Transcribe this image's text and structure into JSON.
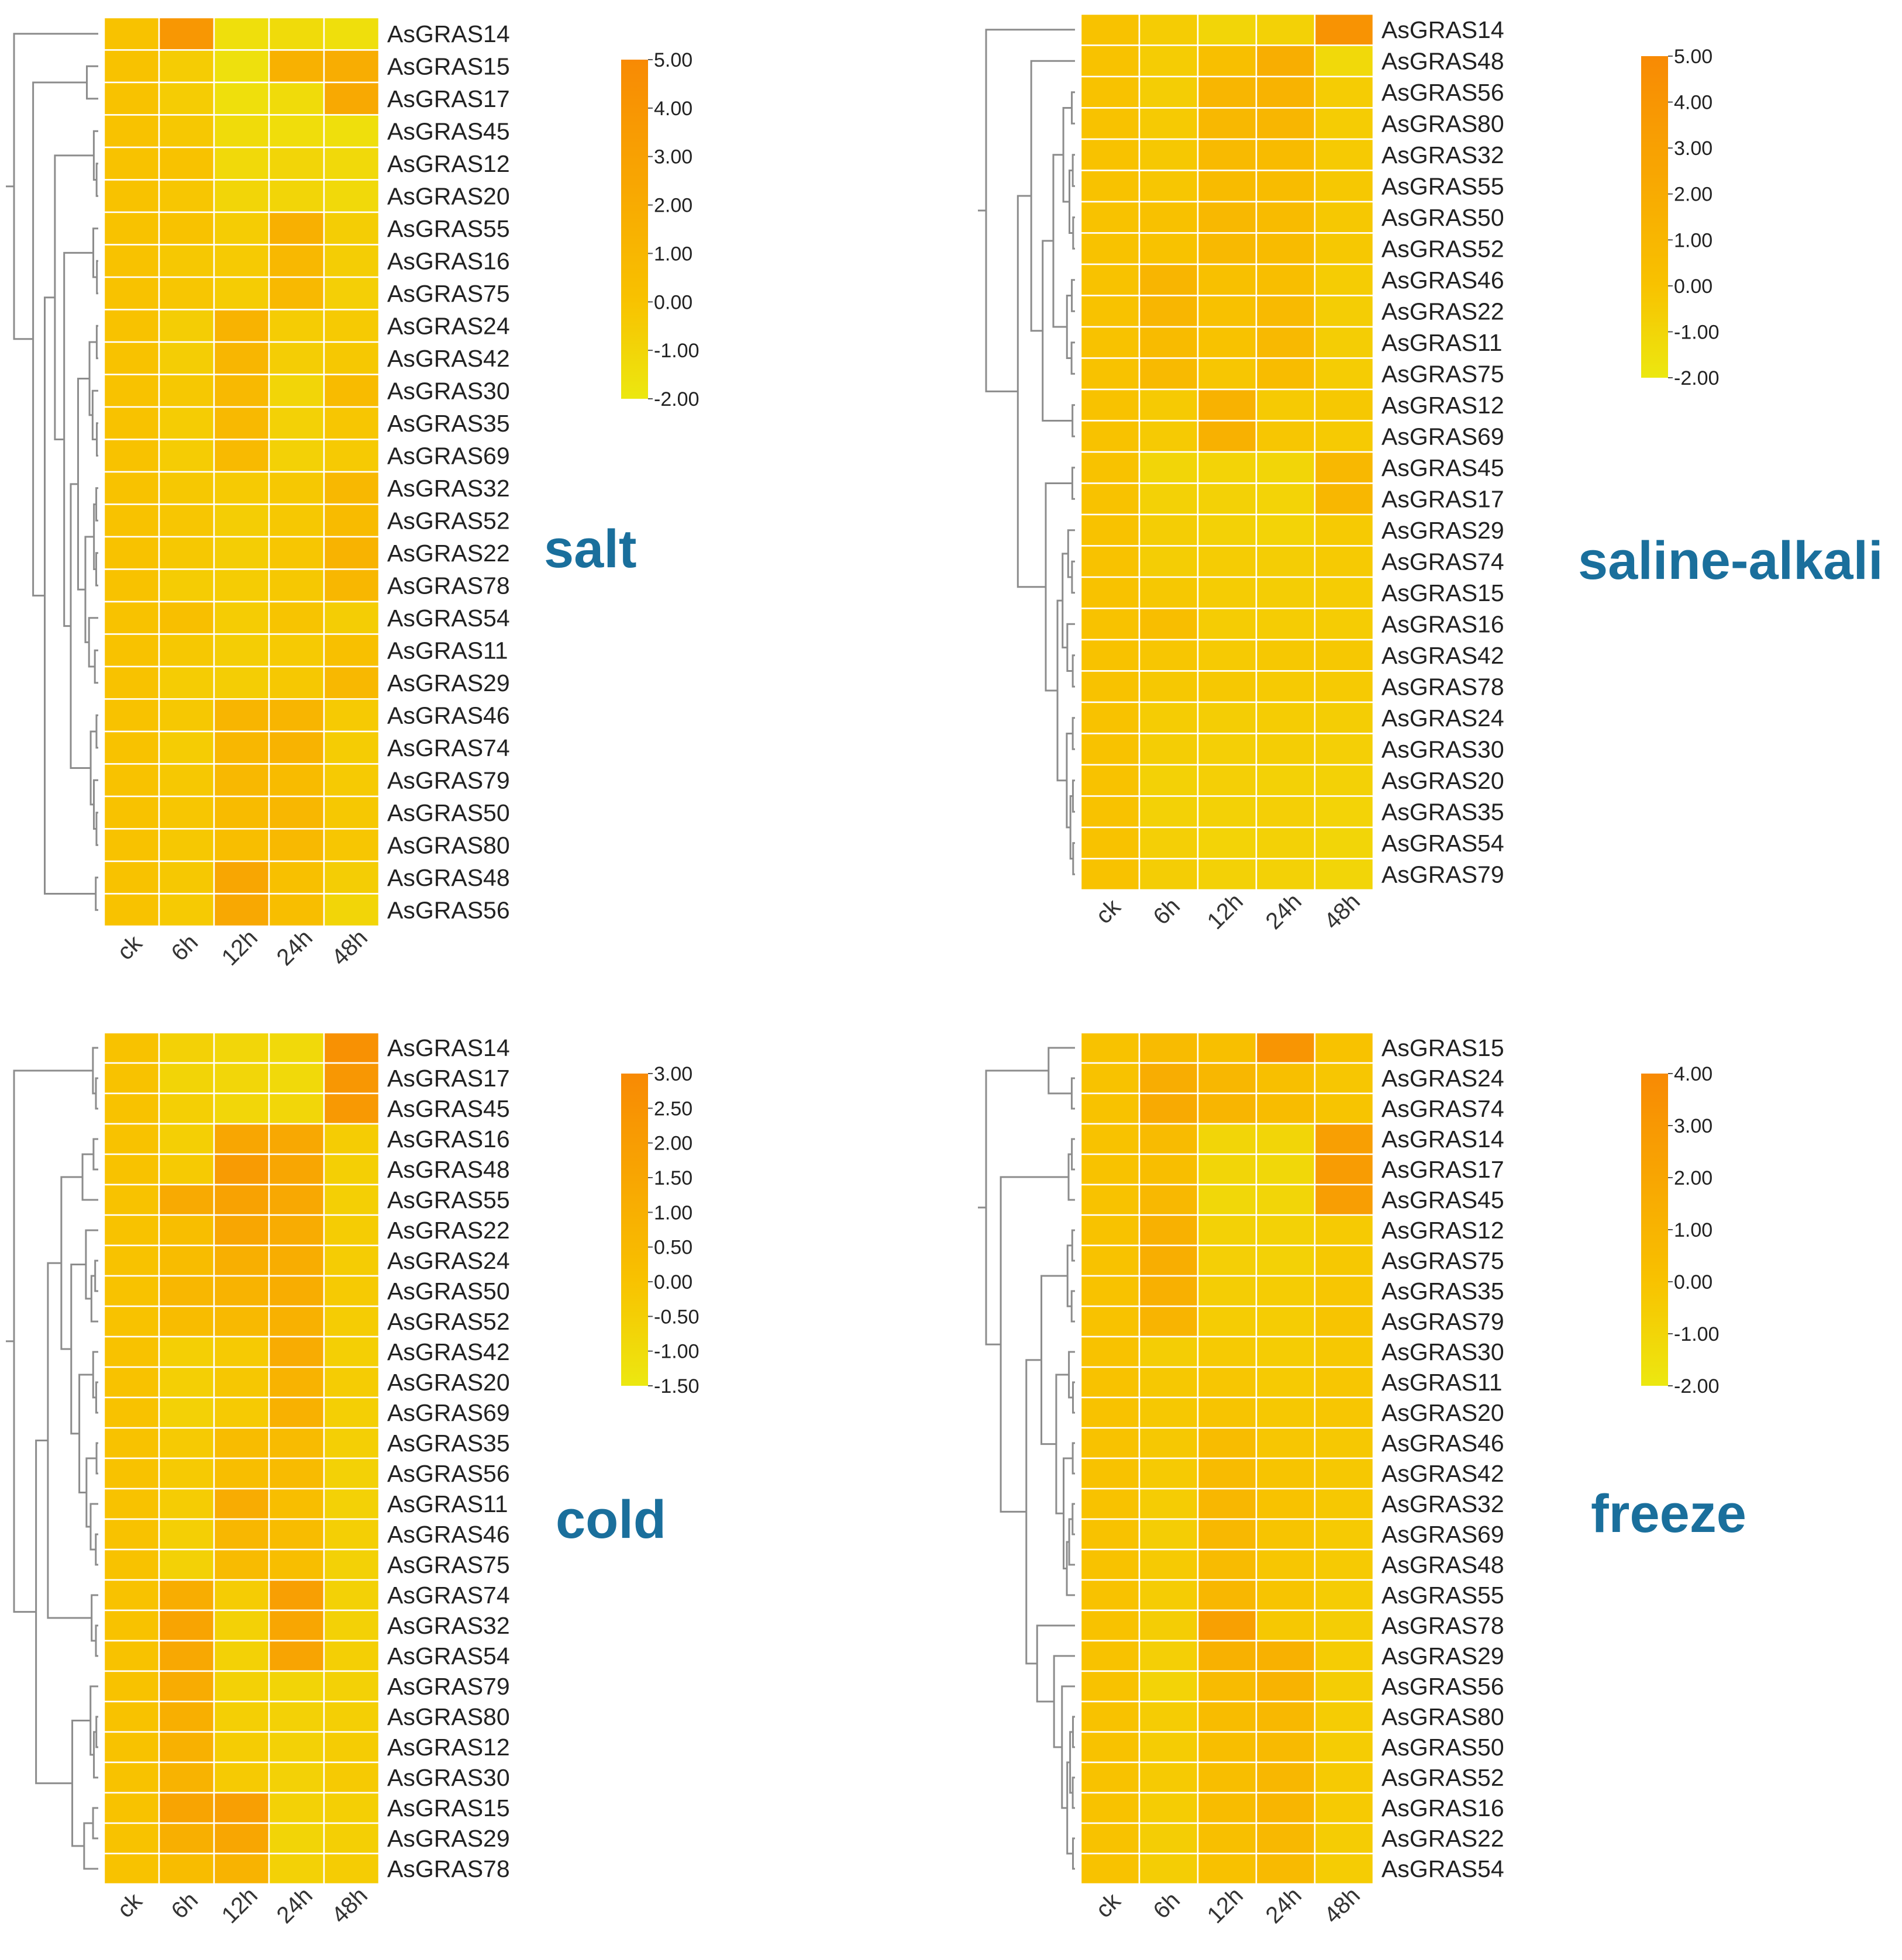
{
  "colors": {
    "low": "#ece810",
    "mid": "#f8c200",
    "high": "#f88a04",
    "title": "#1a6f9c",
    "cell_border": "#ffffff"
  },
  "chart_data": [
    {
      "type": "heatmap",
      "title": "salt",
      "columns": [
        "ck",
        "6h",
        "12h",
        "24h",
        "48h"
      ],
      "rows": [
        "AsGRAS14",
        "AsGRAS15",
        "AsGRAS17",
        "AsGRAS45",
        "AsGRAS12",
        "AsGRAS20",
        "AsGRAS55",
        "AsGRAS16",
        "AsGRAS75",
        "AsGRAS24",
        "AsGRAS42",
        "AsGRAS30",
        "AsGRAS35",
        "AsGRAS69",
        "AsGRAS32",
        "AsGRAS52",
        "AsGRAS22",
        "AsGRAS78",
        "AsGRAS54",
        "AsGRAS11",
        "AsGRAS29",
        "AsGRAS46",
        "AsGRAS74",
        "AsGRAS79",
        "AsGRAS50",
        "AsGRAS80",
        "AsGRAS48",
        "AsGRAS56"
      ],
      "values": [
        [
          0.0,
          3.8,
          -1.5,
          -1.3,
          -1.5
        ],
        [
          0.0,
          -0.5,
          -1.6,
          1.5,
          1.9
        ],
        [
          0.0,
          -0.5,
          -1.5,
          -1.3,
          2.2
        ],
        [
          0.0,
          -0.3,
          -1.3,
          -1.4,
          -1.5
        ],
        [
          0.0,
          0.0,
          -1.2,
          -1.0,
          -1.2
        ],
        [
          0.0,
          -0.2,
          -1.0,
          -1.0,
          -1.2
        ],
        [
          0.0,
          0.0,
          -0.5,
          1.6,
          -0.6
        ],
        [
          0.0,
          -0.3,
          -0.4,
          0.9,
          -0.6
        ],
        [
          0.0,
          -0.2,
          -0.5,
          0.8,
          -0.7
        ],
        [
          0.0,
          -0.6,
          1.3,
          -0.5,
          -0.4
        ],
        [
          0.0,
          -0.6,
          1.1,
          -0.6,
          -0.3
        ],
        [
          0.0,
          -0.3,
          0.8,
          -1.0,
          0.6
        ],
        [
          0.0,
          -0.5,
          0.8,
          -0.8,
          -0.2
        ],
        [
          0.0,
          -0.5,
          0.7,
          -0.8,
          -0.4
        ],
        [
          0.0,
          -0.3,
          -0.4,
          -0.3,
          0.9
        ],
        [
          0.0,
          -0.2,
          -0.6,
          -0.3,
          0.6
        ],
        [
          0.0,
          -0.3,
          -0.6,
          -0.2,
          1.3
        ],
        [
          0.0,
          -0.5,
          -0.5,
          -0.3,
          1.0
        ],
        [
          0.0,
          0.3,
          -0.5,
          -0.1,
          -0.6
        ],
        [
          0.0,
          -0.3,
          -0.6,
          -0.4,
          0.2
        ],
        [
          0.0,
          -0.5,
          -0.6,
          -0.3,
          0.9
        ],
        [
          0.0,
          -0.3,
          1.2,
          1.2,
          -0.4
        ],
        [
          0.0,
          -0.5,
          1.0,
          1.3,
          -0.5
        ],
        [
          0.0,
          -0.3,
          0.9,
          0.6,
          -0.4
        ],
        [
          0.0,
          -0.2,
          0.6,
          1.0,
          -0.3
        ],
        [
          0.0,
          -0.3,
          0.4,
          0.8,
          -0.2
        ],
        [
          0.0,
          -0.3,
          2.5,
          0.2,
          -0.6
        ],
        [
          0.0,
          -0.4,
          2.3,
          0.4,
          -1.0
        ]
      ],
      "legend": {
        "min": -2.0,
        "max": 5.0,
        "ticks": [
          "5.00",
          "4.00",
          "3.00",
          "2.00",
          "1.00",
          "0.00",
          "-1.00",
          "-2.00"
        ]
      }
    },
    {
      "type": "heatmap",
      "title": "saline-alkali",
      "columns": [
        "ck",
        "6h",
        "12h",
        "24h",
        "48h"
      ],
      "rows": [
        "AsGRAS14",
        "AsGRAS48",
        "AsGRAS56",
        "AsGRAS80",
        "AsGRAS32",
        "AsGRAS55",
        "AsGRAS50",
        "AsGRAS52",
        "AsGRAS46",
        "AsGRAS22",
        "AsGRAS11",
        "AsGRAS75",
        "AsGRAS12",
        "AsGRAS69",
        "AsGRAS45",
        "AsGRAS17",
        "AsGRAS29",
        "AsGRAS74",
        "AsGRAS15",
        "AsGRAS16",
        "AsGRAS42",
        "AsGRAS78",
        "AsGRAS24",
        "AsGRAS30",
        "AsGRAS20",
        "AsGRAS35",
        "AsGRAS54",
        "AsGRAS79"
      ],
      "values": [
        [
          0.0,
          -0.5,
          -1.0,
          -0.8,
          4.2
        ],
        [
          0.0,
          -0.5,
          0.3,
          1.8,
          -1.2
        ],
        [
          0.0,
          -0.6,
          1.1,
          1.3,
          -0.5
        ],
        [
          0.0,
          -0.4,
          0.9,
          1.1,
          -0.5
        ],
        [
          0.0,
          -0.3,
          0.7,
          0.6,
          -0.4
        ],
        [
          0.0,
          -0.2,
          0.6,
          0.5,
          -0.3
        ],
        [
          0.0,
          0.1,
          0.9,
          0.6,
          -0.3
        ],
        [
          0.0,
          0.0,
          0.8,
          0.6,
          -0.3
        ],
        [
          0.0,
          1.2,
          0.2,
          0.4,
          -0.5
        ],
        [
          0.0,
          1.1,
          0.1,
          0.7,
          -0.6
        ],
        [
          0.0,
          0.6,
          0.0,
          0.8,
          -0.6
        ],
        [
          0.0,
          0.7,
          -0.2,
          0.5,
          -0.5
        ],
        [
          0.0,
          -0.4,
          1.4,
          -0.4,
          -0.3
        ],
        [
          0.0,
          -0.4,
          1.5,
          -0.2,
          -0.4
        ],
        [
          0.0,
          -1.0,
          -0.9,
          -1.0,
          0.9
        ],
        [
          0.0,
          -0.8,
          -0.8,
          -0.9,
          1.0
        ],
        [
          0.0,
          -0.6,
          -0.8,
          -0.9,
          -0.4
        ],
        [
          0.0,
          -0.6,
          -0.5,
          -0.6,
          -0.4
        ],
        [
          0.0,
          -0.3,
          -0.5,
          -0.6,
          -0.5
        ],
        [
          0.0,
          0.4,
          -0.5,
          -0.5,
          -0.5
        ],
        [
          0.0,
          -0.2,
          -0.4,
          -0.3,
          -0.3
        ],
        [
          0.0,
          -0.3,
          -0.3,
          -0.4,
          -0.4
        ],
        [
          0.0,
          -0.5,
          -0.6,
          -0.5,
          -0.6
        ],
        [
          0.0,
          -0.6,
          -0.7,
          -0.6,
          -0.7
        ],
        [
          0.0,
          -0.8,
          -0.7,
          -0.8,
          -0.8
        ],
        [
          0.0,
          -0.8,
          -0.8,
          -0.7,
          -0.9
        ],
        [
          0.0,
          -0.7,
          -0.9,
          -0.8,
          -1.0
        ],
        [
          0.0,
          -0.6,
          -0.8,
          -0.8,
          -1.0
        ]
      ],
      "legend": {
        "min": -2.0,
        "max": 5.0,
        "ticks": [
          "5.00",
          "4.00",
          "3.00",
          "2.00",
          "1.00",
          "0.00",
          "-1.00",
          "-2.00"
        ]
      }
    },
    {
      "type": "heatmap",
      "title": "cold",
      "columns": [
        "ck",
        "6h",
        "12h",
        "24h",
        "48h"
      ],
      "rows": [
        "AsGRAS14",
        "AsGRAS17",
        "AsGRAS45",
        "AsGRAS16",
        "AsGRAS48",
        "AsGRAS55",
        "AsGRAS22",
        "AsGRAS24",
        "AsGRAS50",
        "AsGRAS52",
        "AsGRAS42",
        "AsGRAS20",
        "AsGRAS69",
        "AsGRAS35",
        "AsGRAS56",
        "AsGRAS11",
        "AsGRAS46",
        "AsGRAS75",
        "AsGRAS74",
        "AsGRAS32",
        "AsGRAS54",
        "AsGRAS79",
        "AsGRAS80",
        "AsGRAS12",
        "AsGRAS30",
        "AsGRAS15",
        "AsGRAS29",
        "AsGRAS78"
      ],
      "values": [
        [
          0.0,
          -0.6,
          -0.8,
          -0.9,
          2.6
        ],
        [
          0.0,
          -0.7,
          -0.8,
          -0.9,
          2.3
        ],
        [
          0.0,
          -0.5,
          -0.8,
          -0.8,
          2.2
        ],
        [
          0.0,
          -0.5,
          1.5,
          1.4,
          -0.4
        ],
        [
          0.0,
          -0.3,
          2.1,
          1.5,
          -0.5
        ],
        [
          0.0,
          1.3,
          1.7,
          1.4,
          -0.5
        ],
        [
          0.0,
          0.2,
          1.5,
          1.2,
          -0.4
        ],
        [
          0.0,
          0.3,
          1.0,
          1.1,
          -0.4
        ],
        [
          0.0,
          0.6,
          0.8,
          1.1,
          -0.3
        ],
        [
          0.0,
          0.3,
          0.5,
          0.9,
          -0.4
        ],
        [
          0.0,
          -0.5,
          -0.3,
          1.2,
          -0.5
        ],
        [
          0.0,
          -0.5,
          -0.2,
          0.8,
          -0.4
        ],
        [
          0.0,
          -0.6,
          -0.3,
          0.9,
          -0.5
        ],
        [
          0.0,
          -0.3,
          0.3,
          0.4,
          -0.5
        ],
        [
          0.0,
          -0.3,
          0.2,
          0.4,
          -0.6
        ],
        [
          0.0,
          -0.4,
          1.2,
          0.2,
          -0.6
        ],
        [
          0.0,
          -0.5,
          0.6,
          0.3,
          -0.5
        ],
        [
          0.0,
          -0.6,
          0.4,
          0.2,
          -0.6
        ],
        [
          0.0,
          1.1,
          -0.4,
          1.9,
          -0.6
        ],
        [
          0.0,
          1.6,
          -0.6,
          1.5,
          -0.6
        ],
        [
          0.0,
          1.4,
          -0.6,
          1.6,
          -0.5
        ],
        [
          0.0,
          1.2,
          -0.6,
          -0.7,
          -0.6
        ],
        [
          0.0,
          1.0,
          -0.5,
          -0.6,
          -0.5
        ],
        [
          0.0,
          0.9,
          -0.4,
          -0.6,
          -0.4
        ],
        [
          0.0,
          0.8,
          -0.3,
          -0.6,
          -0.3
        ],
        [
          0.0,
          1.6,
          1.9,
          -0.6,
          -0.5
        ],
        [
          0.0,
          1.0,
          1.5,
          -0.7,
          -0.5
        ],
        [
          0.0,
          0.3,
          0.8,
          -0.6,
          -0.4
        ]
      ],
      "legend": {
        "min": -1.5,
        "max": 3.0,
        "ticks": [
          "3.00",
          "2.50",
          "2.00",
          "1.50",
          "1.00",
          "0.50",
          "0.00",
          "-0.50",
          "-1.00",
          "-1.50"
        ]
      }
    },
    {
      "type": "heatmap",
      "title": "freeze",
      "columns": [
        "ck",
        "6h",
        "12h",
        "24h",
        "48h"
      ],
      "rows": [
        "AsGRAS15",
        "AsGRAS24",
        "AsGRAS74",
        "AsGRAS14",
        "AsGRAS17",
        "AsGRAS45",
        "AsGRAS12",
        "AsGRAS75",
        "AsGRAS35",
        "AsGRAS79",
        "AsGRAS30",
        "AsGRAS11",
        "AsGRAS20",
        "AsGRAS46",
        "AsGRAS42",
        "AsGRAS32",
        "AsGRAS69",
        "AsGRAS48",
        "AsGRAS55",
        "AsGRAS78",
        "AsGRAS29",
        "AsGRAS56",
        "AsGRAS80",
        "AsGRAS50",
        "AsGRAS52",
        "AsGRAS16",
        "AsGRAS22",
        "AsGRAS54"
      ],
      "values": [
        [
          0.0,
          0.5,
          0.2,
          3.2,
          0.0
        ],
        [
          0.0,
          1.5,
          0.8,
          0.2,
          -0.2
        ],
        [
          0.0,
          1.7,
          0.9,
          0.4,
          -0.1
        ],
        [
          0.0,
          0.5,
          -1.0,
          -1.0,
          2.5
        ],
        [
          0.0,
          0.3,
          -1.0,
          -1.1,
          2.7
        ],
        [
          0.0,
          0.7,
          -1.1,
          -1.0,
          2.6
        ],
        [
          0.0,
          1.2,
          -0.8,
          -0.8,
          -0.4
        ],
        [
          0.0,
          1.4,
          -0.7,
          -0.8,
          -0.3
        ],
        [
          0.0,
          1.3,
          -0.6,
          -0.5,
          -0.2
        ],
        [
          0.0,
          1.0,
          -0.5,
          -0.5,
          -0.1
        ],
        [
          0.0,
          -0.6,
          -0.4,
          -0.5,
          -0.3
        ],
        [
          0.0,
          -0.3,
          -0.2,
          -0.4,
          -0.2
        ],
        [
          0.0,
          -0.3,
          -0.1,
          -0.3,
          -0.2
        ],
        [
          0.0,
          -0.3,
          0.4,
          -0.2,
          -0.3
        ],
        [
          0.0,
          -0.4,
          0.5,
          -0.1,
          -0.3
        ],
        [
          0.0,
          -0.5,
          0.8,
          0.0,
          -0.3
        ],
        [
          0.0,
          -0.6,
          0.7,
          -0.1,
          -0.4
        ],
        [
          0.0,
          -0.4,
          0.5,
          -0.2,
          -0.4
        ],
        [
          0.0,
          -0.5,
          0.8,
          -0.1,
          -0.5
        ],
        [
          0.0,
          -0.6,
          2.4,
          -0.3,
          -0.6
        ],
        [
          0.0,
          -0.7,
          1.2,
          1.2,
          -0.5
        ],
        [
          0.0,
          -0.9,
          0.5,
          1.1,
          -0.6
        ],
        [
          0.0,
          -0.5,
          0.4,
          0.7,
          -0.5
        ],
        [
          0.0,
          -0.5,
          0.3,
          0.6,
          -0.5
        ],
        [
          0.0,
          -0.4,
          0.3,
          0.8,
          -0.4
        ],
        [
          0.0,
          -0.5,
          0.4,
          0.9,
          -0.4
        ],
        [
          0.0,
          -0.6,
          0.2,
          0.7,
          -0.5
        ],
        [
          0.0,
          -0.6,
          0.1,
          0.6,
          -0.5
        ]
      ],
      "legend": {
        "min": -2.0,
        "max": 4.0,
        "ticks": [
          "4.00",
          "3.00",
          "2.00",
          "1.00",
          "0.00",
          "-1.00",
          "-2.00"
        ]
      }
    }
  ]
}
